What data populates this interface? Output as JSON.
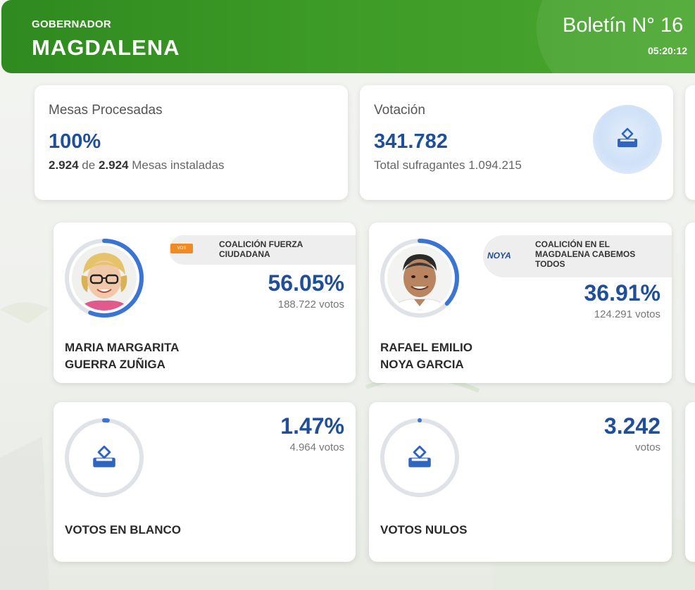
{
  "header": {
    "subtitle": "GOBERNADOR",
    "title": "MAGDALENA",
    "bulletin": "Boletín N° 16",
    "time": "05:20:12"
  },
  "stats": {
    "mesas": {
      "label": "Mesas Procesadas",
      "value": "100%",
      "processed": "2.924",
      "of": "de",
      "installed": "2.924",
      "suffix": "Mesas instaladas"
    },
    "votacion": {
      "label": "Votación",
      "value": "341.782",
      "detail": "Total sufragantes 1.094.215",
      "icon": "ballot-box-icon"
    }
  },
  "candidates": [
    {
      "name_line1": "MARIA MARGARITA",
      "name_line2": "GUERRA ZUÑIGA",
      "party": "COALICIÓN FUERZA CIUDADANA",
      "party_line1": "COALICIÓN FUERZA",
      "party_line2": "CIUDADANA",
      "percent": "56.05%",
      "share": 0.5605,
      "votes": "188.722 votos",
      "logo_text": "VOS",
      "color": "#3a74d6"
    },
    {
      "name_line1": "RAFAEL EMILIO",
      "name_line2": "NOYA GARCIA",
      "party_line1": "COALICIÓN EN EL",
      "party_line2": "MAGDALENA CABEMOS",
      "party_line3": "TODOS",
      "percent": "36.91%",
      "share": 0.3691,
      "votes": "124.291 votos",
      "logo_text": "NOYA",
      "color": "#3a74d6"
    }
  ],
  "special": [
    {
      "label": "VOTOS EN BLANCO",
      "percent": "1.47%",
      "share": 0.0147,
      "votes": "4.964 votos",
      "icon": "ballot-box-icon"
    },
    {
      "label": "VOTOS NULOS",
      "percent": "3.242",
      "votes": "votos",
      "icon": "ballot-box-icon"
    }
  ],
  "colors": {
    "header_green": "#3c9a26",
    "accent_blue": "#1f4e9a",
    "ring_blue": "#3a74d6",
    "ring_track": "#dfe3e8"
  }
}
